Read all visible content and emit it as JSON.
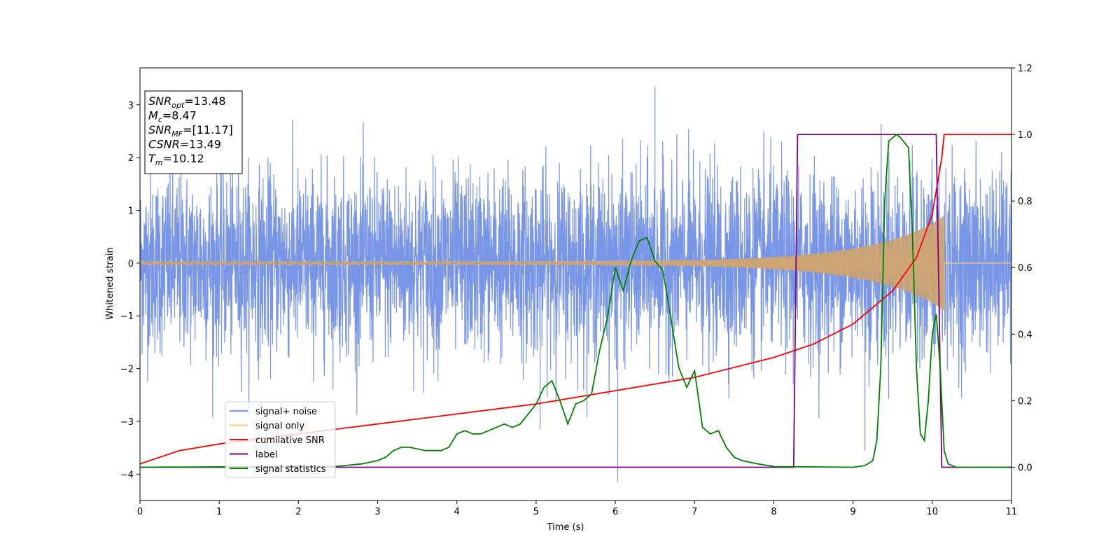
{
  "chart_data": {
    "type": "line",
    "xlabel": "Time (s)",
    "ylabel": "Whitened strain",
    "xlim": [
      0,
      11
    ],
    "ylim": [
      -4.5,
      3.7
    ],
    "y2lim": [
      -0.1,
      1.2
    ],
    "x_ticks": [
      0,
      1,
      2,
      3,
      4,
      5,
      6,
      7,
      8,
      9,
      10,
      11
    ],
    "y_ticks": [
      -4,
      -3,
      -2,
      -1,
      0,
      1,
      2,
      3
    ],
    "y_tick_labels": [
      "−4",
      "−3",
      "−2",
      "−1",
      "0",
      "1",
      "2",
      "3"
    ],
    "y2_ticks": [
      0.0,
      0.2,
      0.4,
      0.6,
      0.8,
      1.0,
      1.2
    ],
    "y2_tick_labels": [
      "0.0",
      "0.2",
      "0.4",
      "0.6",
      "0.8",
      "1.0",
      "1.2"
    ],
    "grid": false,
    "legend_position": "lower-left",
    "annotation": [
      {
        "sym": "SNR",
        "sub": "opt",
        "val": "=13.48"
      },
      {
        "sym": "M",
        "sub": "c",
        "val": "=8.47"
      },
      {
        "sym": "SNR",
        "sub": "MF",
        "val": "=[11.17]"
      },
      {
        "sym": "CSNR",
        "sub": "",
        "val": "=13.49"
      },
      {
        "sym": "T",
        "sub": "m",
        "val": "=10.12"
      }
    ],
    "series": [
      {
        "name": "signal+ noise",
        "axis": "left",
        "color": "#7895e6",
        "description_values": "dense noise, envelope approx",
        "envelope": {
          "x": [
            0,
            11
          ],
          "typical_amplitude": 1.7,
          "max": 3.35,
          "min": -4.15
        },
        "values_peaks": [
          {
            "x": 6.5,
            "y": 3.35
          },
          {
            "x": 6.03,
            "y": -4.15
          },
          {
            "x": 9.15,
            "y": -3.55
          },
          {
            "x": 5.05,
            "y": -3.15
          }
        ]
      },
      {
        "name": "signal only",
        "axis": "left",
        "color": "#f5c87a",
        "chirp": {
          "t_merge": 10.15,
          "amp_start": 0.03,
          "amp_end": 0.75
        }
      },
      {
        "name": "cumilative SNR",
        "axis": "right",
        "color": "#ff0000",
        "x": [
          0,
          0.5,
          1,
          2,
          3,
          4,
          5,
          6,
          7,
          8,
          8.5,
          9,
          9.5,
          9.8,
          10,
          10.12,
          10.15,
          11
        ],
        "y": [
          0.01,
          0.05,
          0.07,
          0.1,
          0.13,
          0.16,
          0.19,
          0.23,
          0.27,
          0.33,
          0.37,
          0.43,
          0.53,
          0.63,
          0.76,
          0.93,
          1.0,
          1.0
        ]
      },
      {
        "name": "label",
        "axis": "right",
        "color": "#800080",
        "x": [
          0,
          8.25,
          8.3,
          10.05,
          10.12,
          11
        ],
        "y": [
          0.0,
          0.0,
          1.0,
          1.0,
          0.0,
          0.0
        ]
      },
      {
        "name": "signal statistics",
        "axis": "right",
        "color": "#008000",
        "x": [
          0,
          2.5,
          2.8,
          3.0,
          3.1,
          3.2,
          3.3,
          3.4,
          3.6,
          3.8,
          3.9,
          4.0,
          4.1,
          4.2,
          4.3,
          4.4,
          4.5,
          4.6,
          4.7,
          4.8,
          4.9,
          5.0,
          5.1,
          5.2,
          5.3,
          5.4,
          5.5,
          5.6,
          5.7,
          5.8,
          5.9,
          6.0,
          6.1,
          6.2,
          6.3,
          6.4,
          6.5,
          6.6,
          6.7,
          6.8,
          6.9,
          7.0,
          7.1,
          7.2,
          7.3,
          7.4,
          7.5,
          7.6,
          7.8,
          8.0,
          8.5,
          9.0,
          9.15,
          9.25,
          9.3,
          9.35,
          9.4,
          9.45,
          9.5,
          9.55,
          9.6,
          9.7,
          9.75,
          9.8,
          9.85,
          9.9,
          9.95,
          10.0,
          10.05,
          10.1,
          10.15,
          10.2,
          10.3,
          11
        ],
        "y": [
          0.0,
          0.003,
          0.01,
          0.02,
          0.03,
          0.05,
          0.06,
          0.06,
          0.05,
          0.05,
          0.06,
          0.1,
          0.11,
          0.1,
          0.1,
          0.11,
          0.12,
          0.13,
          0.12,
          0.13,
          0.16,
          0.19,
          0.24,
          0.26,
          0.2,
          0.13,
          0.19,
          0.2,
          0.22,
          0.35,
          0.45,
          0.6,
          0.53,
          0.62,
          0.68,
          0.69,
          0.62,
          0.59,
          0.45,
          0.3,
          0.24,
          0.29,
          0.12,
          0.1,
          0.11,
          0.06,
          0.03,
          0.02,
          0.01,
          0.002,
          0.001,
          0.0,
          0.005,
          0.02,
          0.08,
          0.3,
          0.8,
          0.98,
          0.99,
          1.0,
          0.99,
          0.96,
          0.7,
          0.3,
          0.1,
          0.08,
          0.2,
          0.4,
          0.46,
          0.3,
          0.05,
          0.01,
          0.0,
          0.0
        ]
      }
    ]
  }
}
